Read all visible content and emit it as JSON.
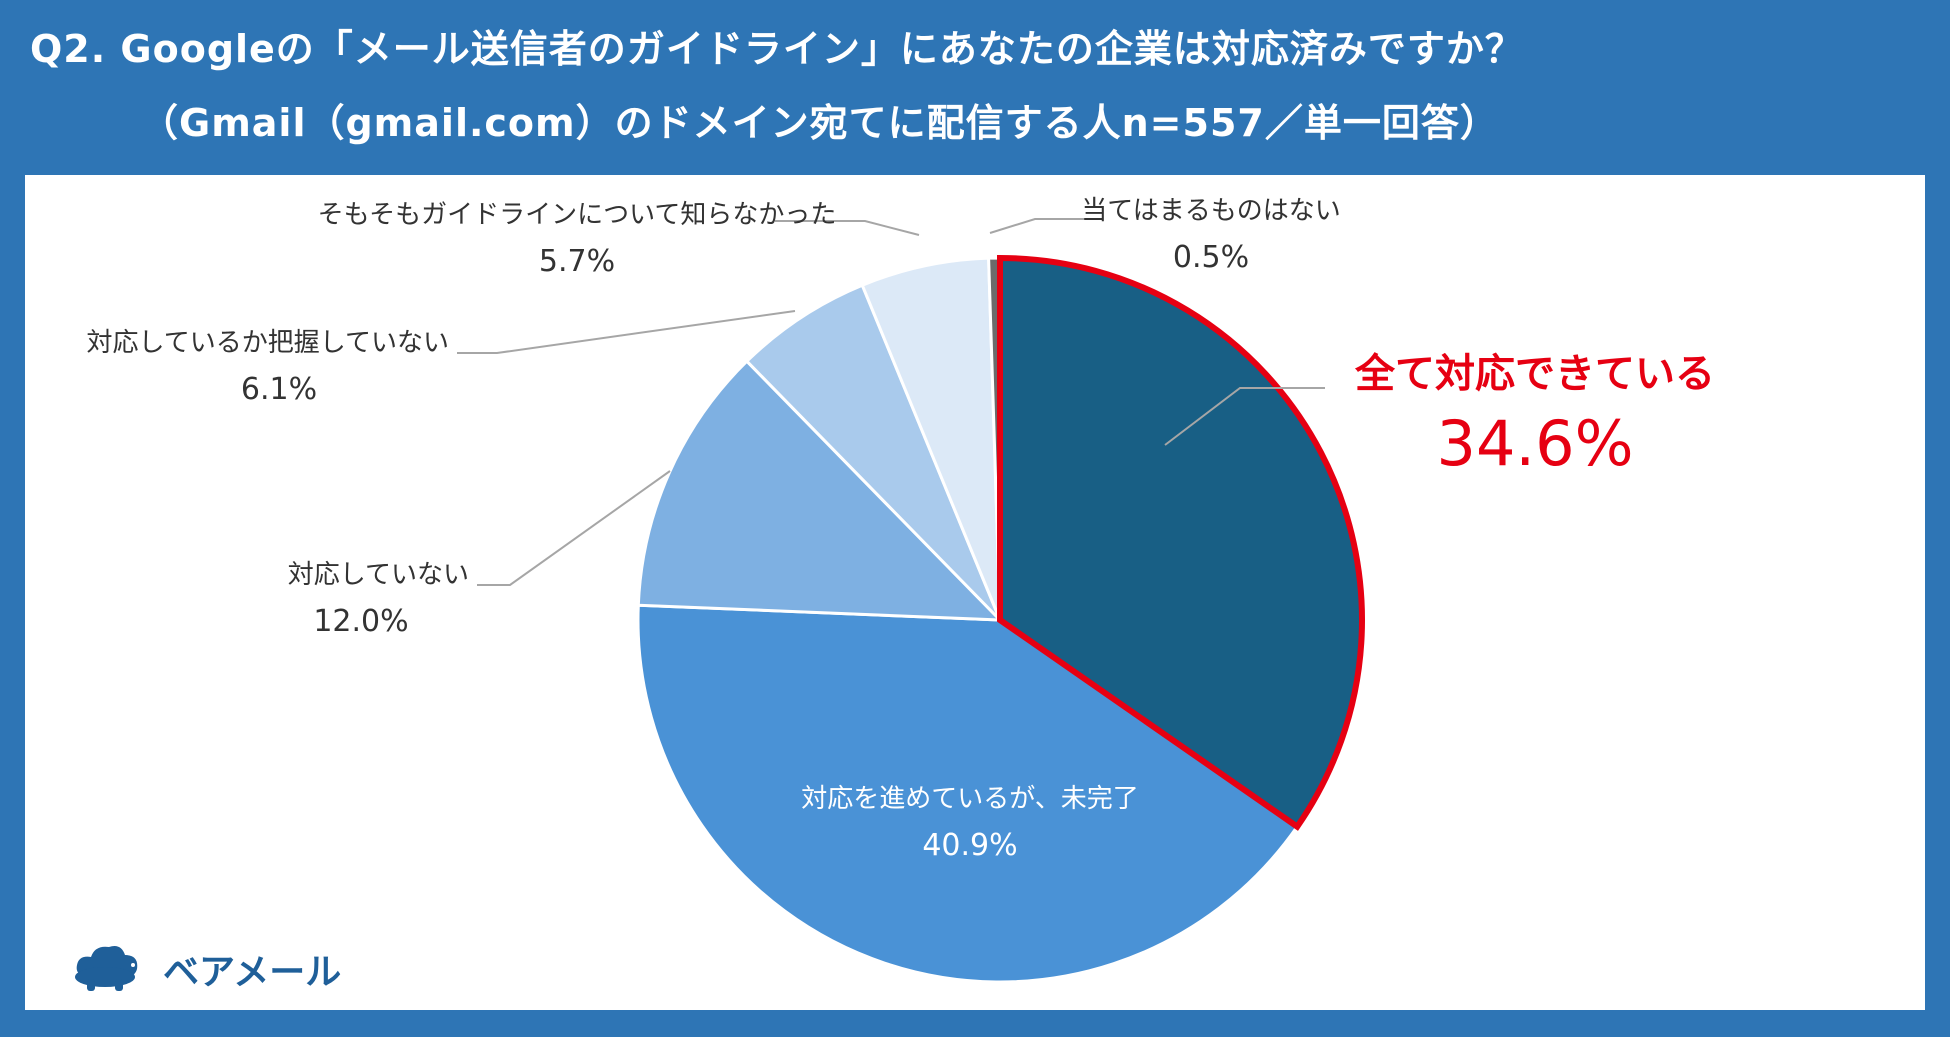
{
  "title": {
    "line1": "Q2. Googleの「メール送信者のガイドライン」にあなたの企業は対応済みですか？",
    "line2": "（Gmail（gmail.com）のドメイン宛てに配信する人n=557／単一回答）"
  },
  "chart_data": {
    "type": "pie",
    "unit": "%",
    "slices": [
      {
        "label": "全て対応できている",
        "value": 34.6,
        "value_label": "34.6%",
        "color": "#185f85",
        "highlight_color": "#e60012"
      },
      {
        "label": "対応を進めているが、未完了",
        "value": 40.9,
        "value_label": "40.9%",
        "color": "#4a92d6"
      },
      {
        "label": "対応していない",
        "value": 12.0,
        "value_label": "12.0%",
        "color": "#7eb0e2"
      },
      {
        "label": "対応しているか把握していない",
        "value": 6.1,
        "value_label": "6.1%",
        "color": "#a9caec"
      },
      {
        "label": "そもそもガイドラインについて知らなかった",
        "value": 5.7,
        "value_label": "5.7%",
        "color": "#dce9f7"
      },
      {
        "label": "当てはまるものはない",
        "value": 0.5,
        "value_label": "0.5%",
        "color": "#6b6b6b"
      }
    ]
  },
  "logo": {
    "text": "ベアメール",
    "icon": "bear-cloud-icon",
    "color": "#1f5f99"
  }
}
